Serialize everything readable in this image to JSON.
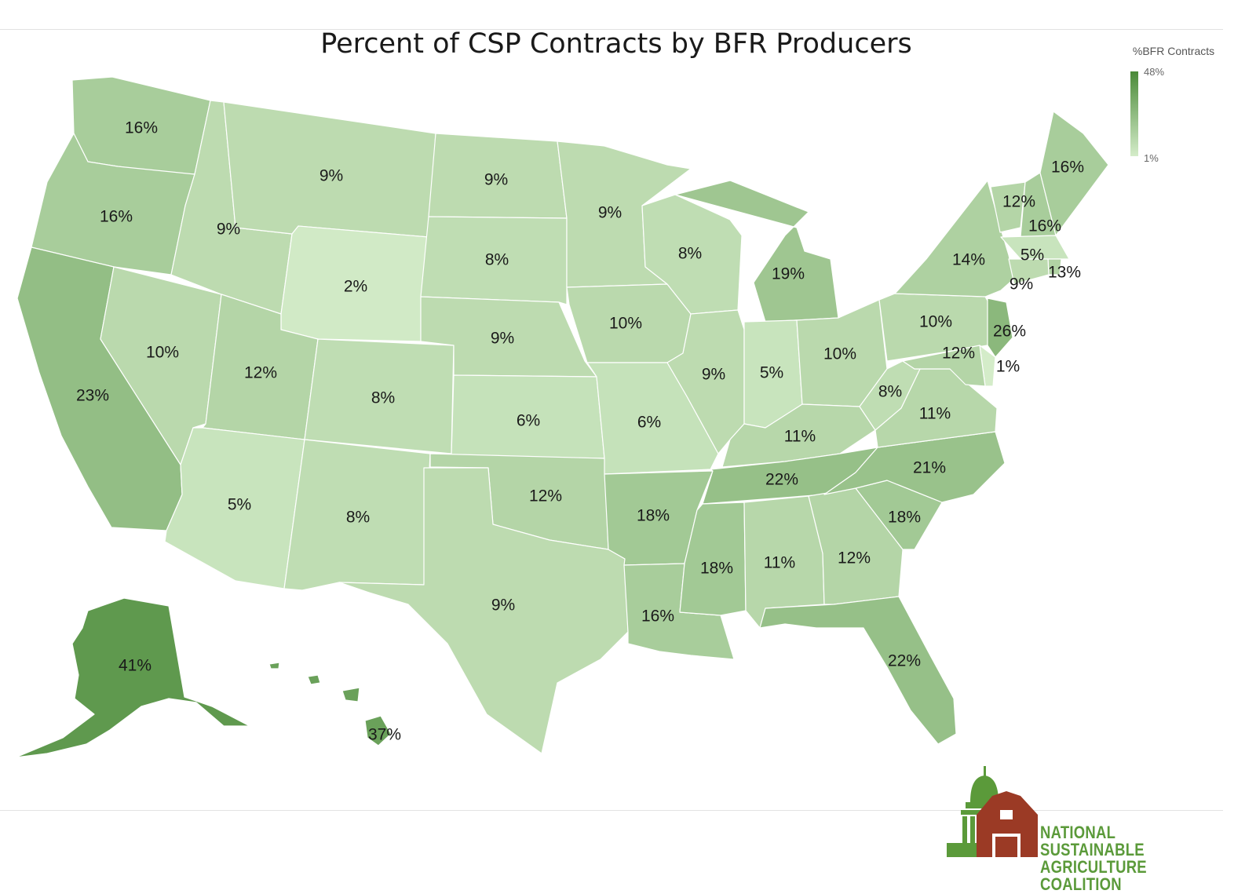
{
  "title": "Percent of CSP Contracts by BFR Producers",
  "legend": {
    "title": "%BFR Contracts",
    "max_label": "48%",
    "min_label": "1%",
    "min_color": "#d4ecc9",
    "max_color": "#4a8a38"
  },
  "logo": {
    "line1": "NATIONAL SUSTAINABLE",
    "line2": "AGRICULTURE COALITION",
    "barn_color": "#9b3a25",
    "dome_color": "#5b9a3a"
  },
  "states": [
    {
      "code": "WA",
      "label": "16%",
      "value": 16
    },
    {
      "code": "OR",
      "label": "16%",
      "value": 16
    },
    {
      "code": "CA",
      "label": "23%",
      "value": 23
    },
    {
      "code": "NV",
      "label": "10%",
      "value": 10
    },
    {
      "code": "ID",
      "label": "9%",
      "value": 9
    },
    {
      "code": "MT",
      "label": "9%",
      "value": 9
    },
    {
      "code": "WY",
      "label": "2%",
      "value": 2
    },
    {
      "code": "UT",
      "label": "12%",
      "value": 12
    },
    {
      "code": "AZ",
      "label": "5%",
      "value": 5
    },
    {
      "code": "CO",
      "label": "8%",
      "value": 8
    },
    {
      "code": "NM",
      "label": "8%",
      "value": 8
    },
    {
      "code": "ND",
      "label": "9%",
      "value": 9
    },
    {
      "code": "SD",
      "label": "8%",
      "value": 8
    },
    {
      "code": "NE",
      "label": "9%",
      "value": 9
    },
    {
      "code": "KS",
      "label": "6%",
      "value": 6
    },
    {
      "code": "OK",
      "label": "12%",
      "value": 12
    },
    {
      "code": "TX",
      "label": "9%",
      "value": 9
    },
    {
      "code": "MN",
      "label": "9%",
      "value": 9
    },
    {
      "code": "IA",
      "label": "10%",
      "value": 10
    },
    {
      "code": "MO",
      "label": "6%",
      "value": 6
    },
    {
      "code": "AR",
      "label": "18%",
      "value": 18
    },
    {
      "code": "LA",
      "label": "16%",
      "value": 16
    },
    {
      "code": "WI",
      "label": "8%",
      "value": 8
    },
    {
      "code": "IL",
      "label": "9%",
      "value": 9
    },
    {
      "code": "MI",
      "label": "19%",
      "value": 19
    },
    {
      "code": "IN",
      "label": "5%",
      "value": 5
    },
    {
      "code": "OH",
      "label": "10%",
      "value": 10
    },
    {
      "code": "KY",
      "label": "11%",
      "value": 11
    },
    {
      "code": "TN",
      "label": "22%",
      "value": 22
    },
    {
      "code": "MS",
      "label": "18%",
      "value": 18
    },
    {
      "code": "AL",
      "label": "11%",
      "value": 11
    },
    {
      "code": "GA",
      "label": "12%",
      "value": 12
    },
    {
      "code": "FL",
      "label": "22%",
      "value": 22
    },
    {
      "code": "SC",
      "label": "18%",
      "value": 18
    },
    {
      "code": "NC",
      "label": "21%",
      "value": 21
    },
    {
      "code": "VA",
      "label": "11%",
      "value": 11
    },
    {
      "code": "WV",
      "label": "8%",
      "value": 8
    },
    {
      "code": "PA",
      "label": "10%",
      "value": 10
    },
    {
      "code": "NY",
      "label": "14%",
      "value": 14
    },
    {
      "code": "VT",
      "label": "12%",
      "value": 12
    },
    {
      "code": "NH",
      "label": "16%",
      "value": 16
    },
    {
      "code": "ME",
      "label": "16%",
      "value": 16
    },
    {
      "code": "MA",
      "label": "5%",
      "value": 5
    },
    {
      "code": "RI",
      "label": "13%",
      "value": 13
    },
    {
      "code": "CT",
      "label": "9%",
      "value": 9
    },
    {
      "code": "NJ",
      "label": "26%",
      "value": 26
    },
    {
      "code": "DE",
      "label": "1%",
      "value": 1
    },
    {
      "code": "MD",
      "label": "12%",
      "value": 12
    },
    {
      "code": "AK",
      "label": "41%",
      "value": 41
    },
    {
      "code": "HI",
      "label": "37%",
      "value": 37
    }
  ]
}
